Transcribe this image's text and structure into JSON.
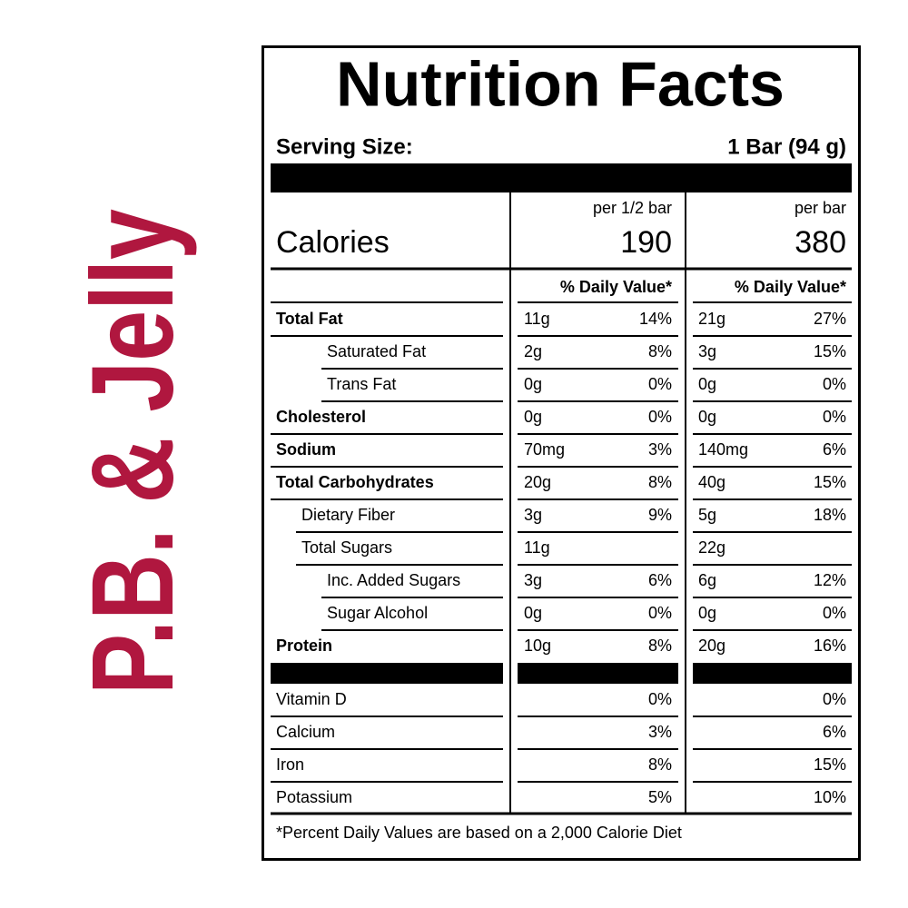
{
  "brand": "P.B. & Jelly",
  "title": "Nutrition Facts",
  "serving": {
    "label": "Serving Size:",
    "value": "1 Bar (94 g)"
  },
  "calories": {
    "label": "Calories",
    "columns": [
      {
        "header": "per 1/2 bar",
        "value": "190"
      },
      {
        "header": "per bar",
        "value": "380"
      }
    ]
  },
  "dv_header": "% Daily Value*",
  "nutrients": [
    {
      "name": "Total Fat",
      "bold": true,
      "level": 0,
      "half": [
        "11g",
        "14%"
      ],
      "full": [
        "21g",
        "27%"
      ]
    },
    {
      "name": "Saturated Fat",
      "bold": false,
      "level": 2,
      "half": [
        "2g",
        "8%"
      ],
      "full": [
        "3g",
        "15%"
      ]
    },
    {
      "name": "Trans Fat",
      "bold": false,
      "level": 2,
      "half": [
        "0g",
        "0%"
      ],
      "full": [
        "0g",
        "0%"
      ]
    },
    {
      "name": "Cholesterol",
      "bold": true,
      "level": 0,
      "half": [
        "0g",
        "0%"
      ],
      "full": [
        "0g",
        "0%"
      ]
    },
    {
      "name": "Sodium",
      "bold": true,
      "level": 0,
      "half": [
        "70mg",
        "3%"
      ],
      "full": [
        "140mg",
        "6%"
      ]
    },
    {
      "name": "Total Carbohydrates",
      "bold": true,
      "level": 0,
      "half": [
        "20g",
        "8%"
      ],
      "full": [
        "40g",
        "15%"
      ]
    },
    {
      "name": "Dietary Fiber",
      "bold": false,
      "level": 1,
      "half": [
        "3g",
        "9%"
      ],
      "full": [
        "5g",
        "18%"
      ]
    },
    {
      "name": "Total Sugars",
      "bold": false,
      "level": 1,
      "half": [
        "11g"
      ],
      "full": [
        "22g"
      ]
    },
    {
      "name": "Inc. Added Sugars",
      "bold": false,
      "level": 2,
      "half": [
        "3g",
        "6%"
      ],
      "full": [
        "6g",
        "12%"
      ]
    },
    {
      "name": "Sugar Alcohol",
      "bold": false,
      "level": 2,
      "half": [
        "0g",
        "0%"
      ],
      "full": [
        "0g",
        "0%"
      ]
    },
    {
      "name": "Protein",
      "bold": true,
      "level": 0,
      "half": [
        "10g",
        "8%"
      ],
      "full": [
        "20g",
        "16%"
      ]
    }
  ],
  "vitamins": [
    {
      "name": "Vitamin D",
      "half": "0%",
      "full": "0%"
    },
    {
      "name": "Calcium",
      "half": "3%",
      "full": "6%"
    },
    {
      "name": "Iron",
      "half": "8%",
      "full": "15%"
    },
    {
      "name": "Potassium",
      "half": "5%",
      "full": "10%"
    }
  ],
  "footnote": "*Percent Daily Values are based on a 2,000 Calorie Diet"
}
